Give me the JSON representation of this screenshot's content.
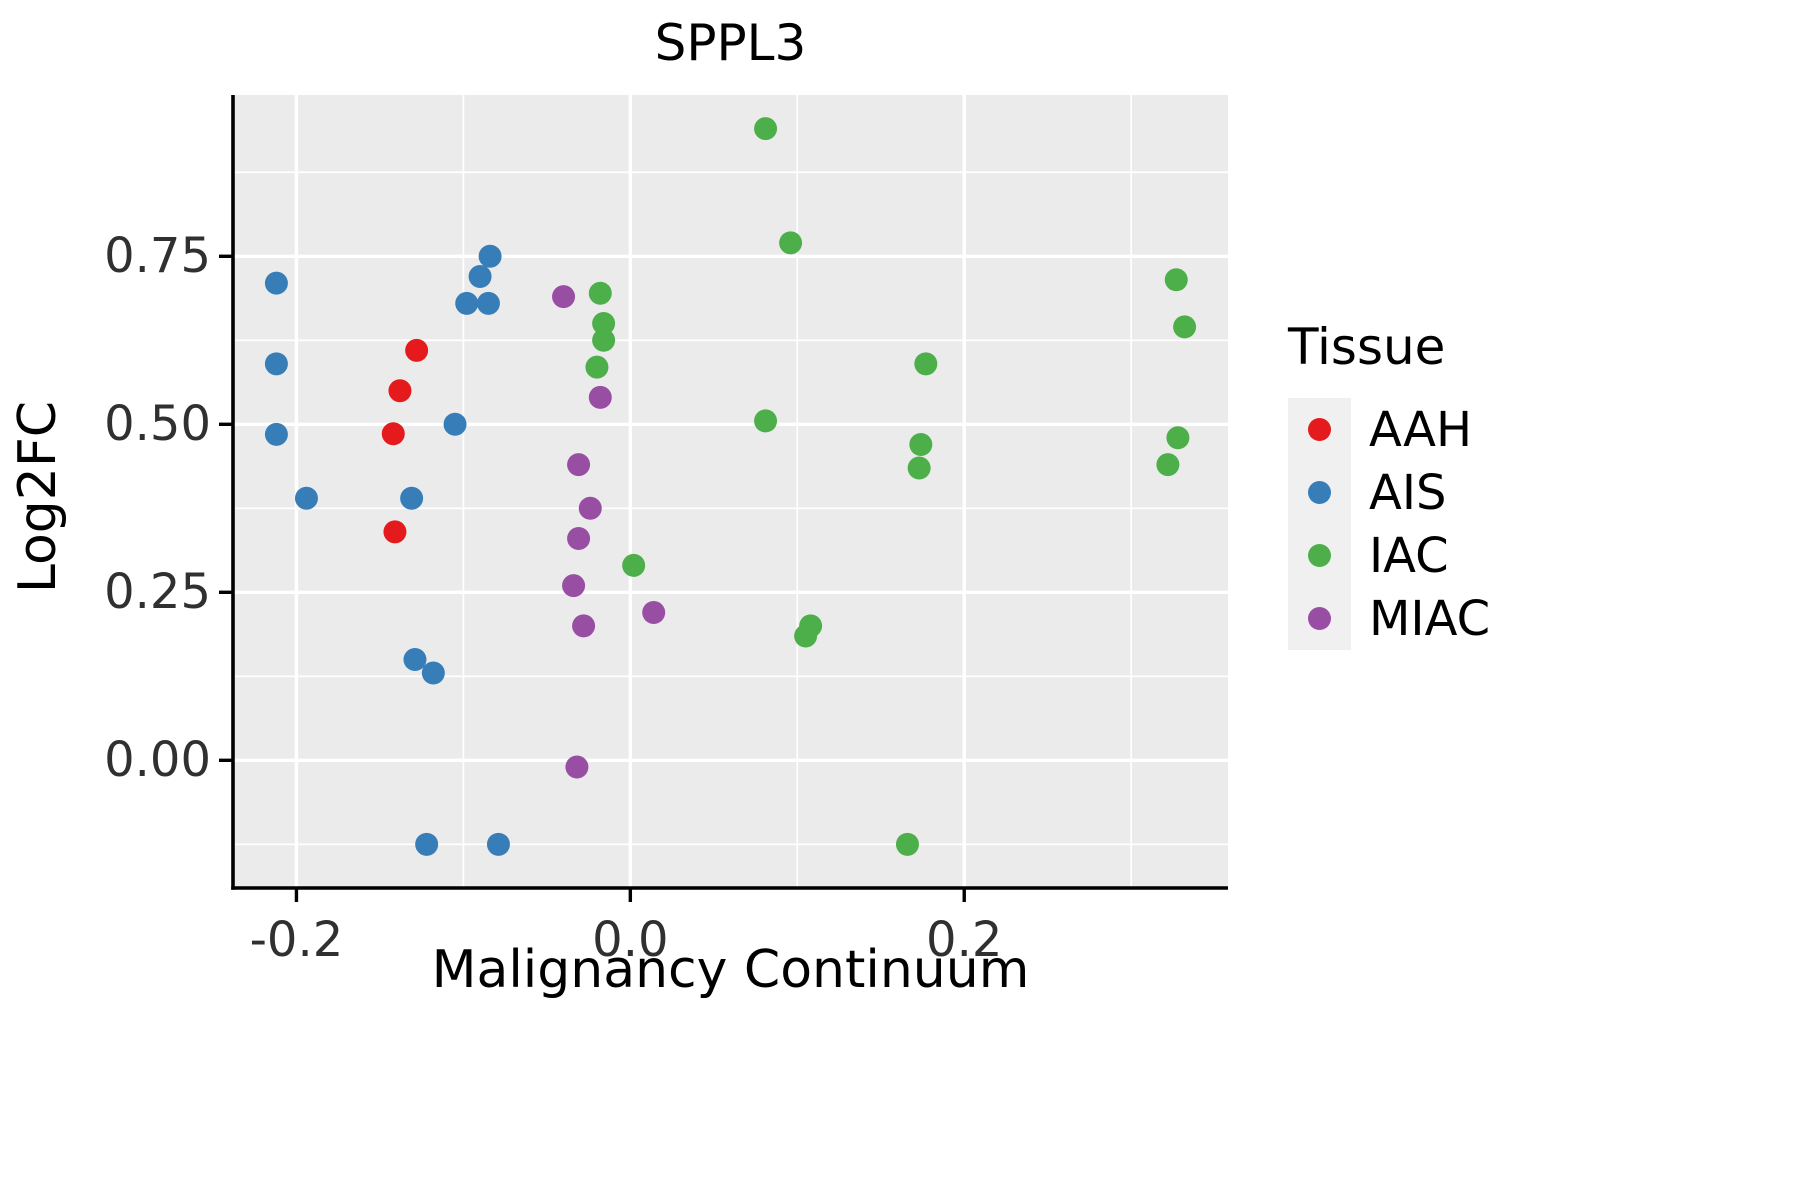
{
  "chart_data": {
    "type": "scatter",
    "title": "SPPL3",
    "xlabel": "Malignancy Continuum",
    "ylabel": "Log2FC",
    "xlim": [
      -0.238,
      0.358
    ],
    "ylim": [
      -0.19,
      0.99
    ],
    "x_ticks": [
      -0.2,
      0.0,
      0.2
    ],
    "x_tick_labels": [
      "-0.2",
      "0.0",
      "0.2"
    ],
    "x_minor_ticks": [
      -0.1,
      0.1,
      0.3
    ],
    "y_ticks": [
      0.0,
      0.25,
      0.5,
      0.75
    ],
    "y_tick_labels": [
      "0.00",
      "0.25",
      "0.50",
      "0.75"
    ],
    "y_minor_ticks": [
      -0.125,
      0.125,
      0.375,
      0.625,
      0.875
    ],
    "grid": true,
    "panel_background": "#EBEBEB",
    "gridline_color": "#FFFFFF",
    "legend_title": "Tissue",
    "legend_position": "right",
    "series": [
      {
        "name": "AAH",
        "color": "#E41A1C",
        "points": [
          [
            -0.128,
            0.61
          ],
          [
            -0.138,
            0.55
          ],
          [
            -0.142,
            0.486
          ],
          [
            -0.141,
            0.34
          ]
        ]
      },
      {
        "name": "AIS",
        "color": "#377EB8",
        "points": [
          [
            -0.212,
            0.71
          ],
          [
            -0.212,
            0.59
          ],
          [
            -0.212,
            0.485
          ],
          [
            -0.194,
            0.39
          ],
          [
            -0.084,
            0.75
          ],
          [
            -0.09,
            0.72
          ],
          [
            -0.098,
            0.68
          ],
          [
            -0.085,
            0.68
          ],
          [
            -0.105,
            0.5
          ],
          [
            -0.131,
            0.39
          ],
          [
            -0.129,
            0.15
          ],
          [
            -0.118,
            0.13
          ],
          [
            -0.122,
            -0.125
          ],
          [
            -0.079,
            -0.125
          ]
        ]
      },
      {
        "name": "IAC",
        "color": "#4DAF4A",
        "points": [
          [
            0.081,
            0.94
          ],
          [
            0.096,
            0.77
          ],
          [
            -0.018,
            0.695
          ],
          [
            -0.016,
            0.65
          ],
          [
            -0.016,
            0.625
          ],
          [
            -0.02,
            0.585
          ],
          [
            0.081,
            0.505
          ],
          [
            0.177,
            0.59
          ],
          [
            0.174,
            0.47
          ],
          [
            0.173,
            0.435
          ],
          [
            0.327,
            0.715
          ],
          [
            0.332,
            0.645
          ],
          [
            0.328,
            0.48
          ],
          [
            0.322,
            0.44
          ],
          [
            0.002,
            0.29
          ],
          [
            0.108,
            0.2
          ],
          [
            0.105,
            0.185
          ],
          [
            0.166,
            -0.125
          ]
        ]
      },
      {
        "name": "MIAC",
        "color": "#984EA3",
        "points": [
          [
            -0.04,
            0.69
          ],
          [
            -0.018,
            0.54
          ],
          [
            -0.031,
            0.44
          ],
          [
            -0.024,
            0.375
          ],
          [
            -0.031,
            0.33
          ],
          [
            -0.034,
            0.26
          ],
          [
            -0.028,
            0.2
          ],
          [
            0.014,
            0.22
          ],
          [
            -0.032,
            -0.01
          ]
        ]
      }
    ]
  }
}
